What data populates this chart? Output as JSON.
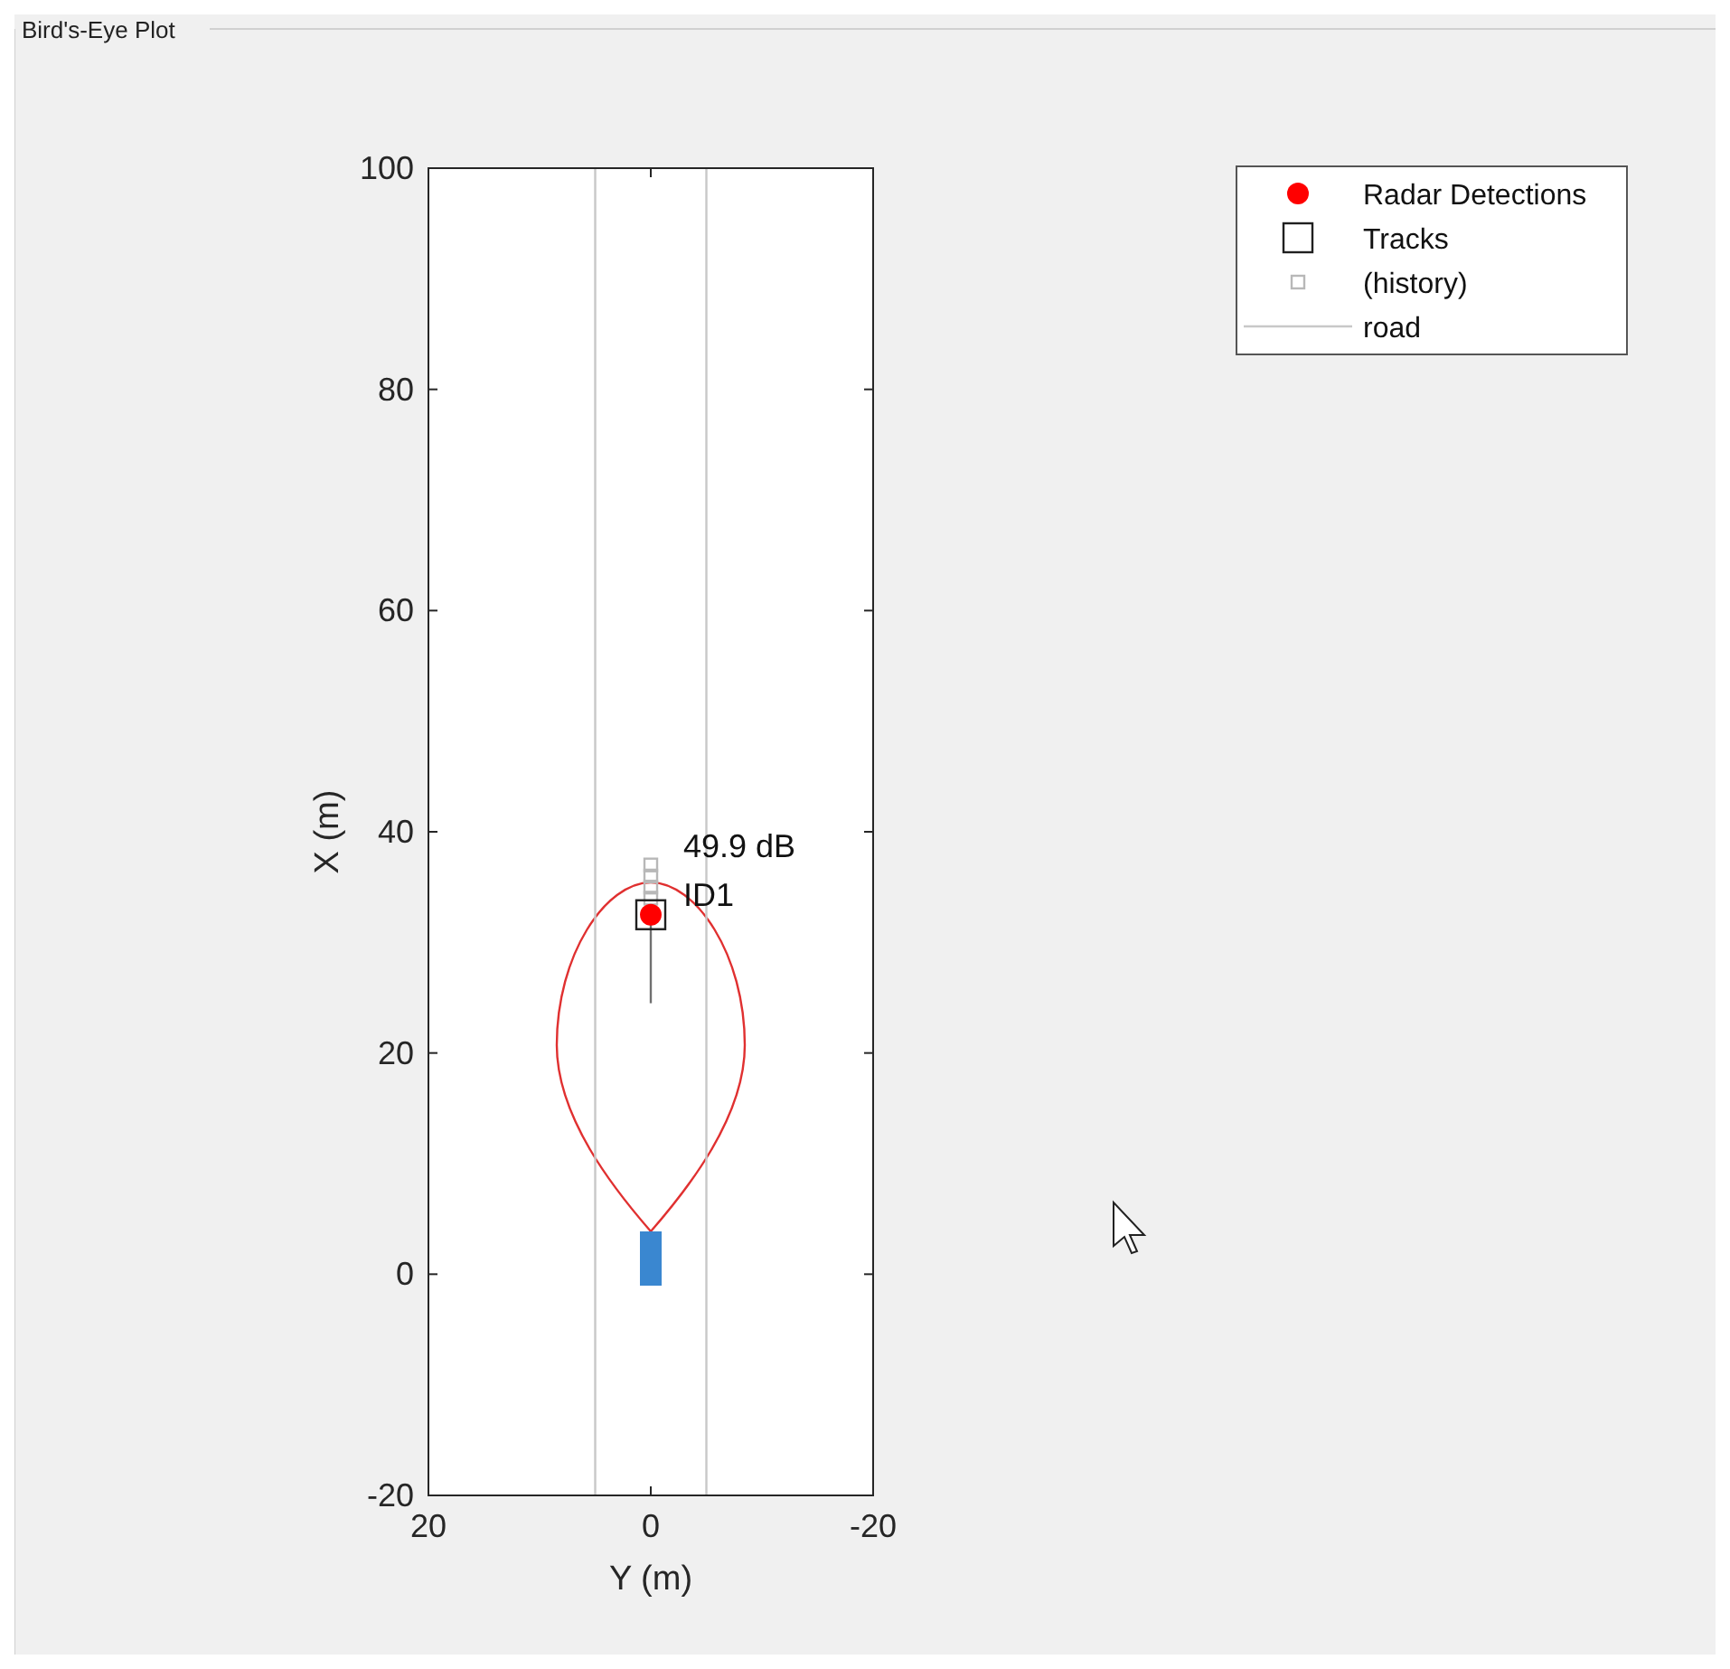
{
  "chart_data": {
    "type": "scatter",
    "title": "Bird's-Eye Plot",
    "xlabel": "Y (m)",
    "ylabel": "X (m)",
    "xlim": [
      20,
      -20
    ],
    "xticks": [
      20,
      0,
      -20
    ],
    "ylim": [
      -20,
      100
    ],
    "yticks": [
      -20,
      0,
      20,
      40,
      60,
      80,
      100
    ],
    "grid": false,
    "legend": "top right",
    "series": [
      {
        "name": "road",
        "type": "line",
        "color": "#c8c8c8",
        "x": [
          5,
          5,
          0,
          -5,
          -5
        ],
        "values": [
          -20,
          100,
          null,
          100,
          -20
        ]
      },
      {
        "type": "line",
        "color": "#707070",
        "x": [
          0,
          0
        ],
        "values": [
          32.5,
          24.5
        ]
      },
      {
        "name": "(history)",
        "marker": "square",
        "color": "#b8b8b8",
        "x": [
          0,
          0,
          0,
          0
        ],
        "values": [
          34,
          35,
          36,
          37
        ]
      },
      {
        "name": "Tracks",
        "marker": "square",
        "color": "#202020",
        "x": [
          0
        ],
        "values": [
          32.5
        ]
      },
      {
        "name": "Radar Detections",
        "marker": "circle",
        "color": "#ff0000",
        "x": [
          0
        ],
        "values": [
          32.5
        ]
      }
    ],
    "annotations": [
      {
        "text": "49.9 dB",
        "x": 0,
        "y": 32.5
      },
      {
        "text": "ID1",
        "x": 0,
        "y": 32.5
      }
    ]
  }
}
